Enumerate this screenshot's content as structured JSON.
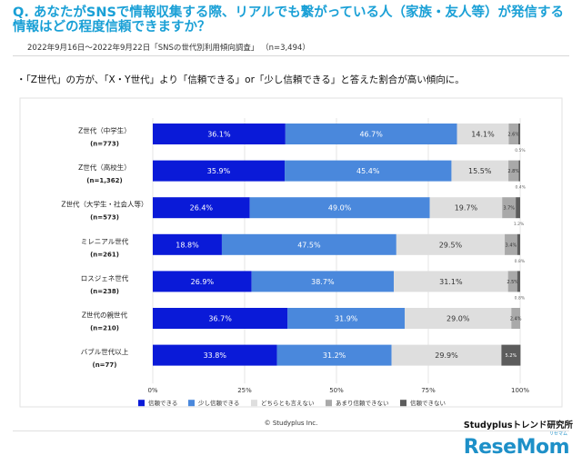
{
  "header": {
    "question": "Q. あなたがSNSで情報収集する際、リアルでも繋がっている人（家族・友人等）が発信する情報はどの程度信頼できますか？",
    "survey_meta": "2022年9月16日～2022年9月22日「SNSの世代別利用傾向調査」 （n=3,494）",
    "bullet": "・「Z世代」の方が、「X・Y世代」より「信頼できる」or「少し信頼できる」と答えた割合が高い傾向に。"
  },
  "footer": {
    "copyright": "© Studyplus Inc.",
    "source": "Studyplusトレンド研究所",
    "brand": "ReseMom",
    "brand_ruby": "リセマム"
  },
  "chart_data": {
    "type": "bar",
    "orientation": "horizontal-stacked-100",
    "categories": [
      {
        "label": "Z世代（中学生）",
        "n": "(n=773)"
      },
      {
        "label": "Z世代（高校生）",
        "n": "(n=1,362)"
      },
      {
        "label": "Z世代（大学生・社会人等）",
        "n": "(n=573)"
      },
      {
        "label": "ミレニアル世代",
        "n": "(n=261)"
      },
      {
        "label": "ロスジェネ世代",
        "n": "(n=238)"
      },
      {
        "label": "Z世代の親世代",
        "n": "(n=210)"
      },
      {
        "label": "バブル世代以上",
        "n": "(n=77)"
      }
    ],
    "series": [
      {
        "name": "信頼できる",
        "color": "#0a1ad8",
        "text_color": "#ffffff",
        "values": [
          36.1,
          35.9,
          26.4,
          18.8,
          26.9,
          36.7,
          33.8
        ],
        "labels": [
          "36.1%",
          "35.9%",
          "26.4%",
          "18.8%",
          "26.9%",
          "36.7%",
          "33.8%"
        ]
      },
      {
        "name": "少し信頼できる",
        "color": "#4a88dc",
        "text_color": "#ffffff",
        "values": [
          46.7,
          45.4,
          49.0,
          47.5,
          38.7,
          31.9,
          31.2
        ],
        "labels": [
          "46.7%",
          "45.4%",
          "49.0%",
          "47.5%",
          "38.7%",
          "31.9%",
          "31.2%"
        ]
      },
      {
        "name": "どちらとも言えない",
        "color": "#dedede",
        "text_color": "#333333",
        "values": [
          14.1,
          15.5,
          19.7,
          29.5,
          31.1,
          29.0,
          29.9
        ],
        "labels": [
          "14.1%",
          "15.5%",
          "19.7%",
          "29.5%",
          "31.1%",
          "29.0%",
          "29.9%"
        ]
      },
      {
        "name": "あまり信頼できない",
        "color": "#a9a9a9",
        "text_color": "#333333",
        "values": [
          2.6,
          2.8,
          3.7,
          3.4,
          2.5,
          2.4,
          0
        ],
        "labels": [
          "2.6%",
          "2.8%",
          "3.7%",
          "3.4%",
          "2.5%",
          "2.4%",
          ""
        ]
      },
      {
        "name": "信頼できない",
        "color": "#5c5c5c",
        "text_color": "#ffffff",
        "values": [
          0.5,
          0.4,
          1.2,
          0.8,
          0.8,
          0,
          5.2
        ],
        "labels": [
          "0.5%",
          "0.4%",
          "1.2%",
          "0.8%",
          "0.8%",
          "",
          "5.2%"
        ]
      }
    ],
    "xlim": [
      0,
      100
    ],
    "x_ticks": [
      "0%",
      "25%",
      "50%",
      "75%",
      "100%"
    ],
    "legend_position": "bottom",
    "grid": true
  }
}
